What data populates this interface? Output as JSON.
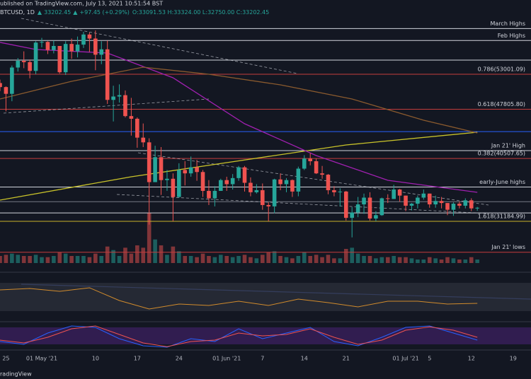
{
  "header": {
    "published": "ublished on TradingView.com, July 13, 2021 10:51:54 BST",
    "symbol": "BTCUSD, 1D",
    "price": "33202.45",
    "change": "+97.45 (+0.29%)",
    "ohlc": "O:33091.53 H:33324.00 L:32750.00 C:33202.45",
    "footer": "radingView"
  },
  "chart_data": {
    "type": "candlestick",
    "up_color": "#26a69a",
    "down_color": "#ef5350",
    "xlim": [
      "2021-04-24",
      "2021-07-22"
    ],
    "ylim": [
      26255,
      61920
    ],
    "grid": true,
    "xticks": [
      {
        "value": "2021-04-25",
        "label": "25"
      },
      {
        "value": "2021-05-01",
        "label": "01 May '21"
      },
      {
        "value": "2021-05-10",
        "label": "10"
      },
      {
        "value": "2021-05-17",
        "label": "17"
      },
      {
        "value": "2021-05-24",
        "label": "24"
      },
      {
        "value": "2021-06-01",
        "label": "01 Jun '21"
      },
      {
        "value": "2021-06-07",
        "label": "7"
      },
      {
        "value": "2021-06-14",
        "label": "14"
      },
      {
        "value": "2021-06-21",
        "label": "21"
      },
      {
        "value": "2021-07-01",
        "label": "01 Jul '21"
      },
      {
        "value": "2021-07-05",
        "label": "5"
      },
      {
        "value": "2021-07-12",
        "label": "12"
      },
      {
        "value": "2021-07-19",
        "label": "19"
      }
    ],
    "x": [
      "2021-04-24",
      "2021-04-25",
      "2021-04-26",
      "2021-04-27",
      "2021-04-28",
      "2021-04-29",
      "2021-04-30",
      "2021-05-01",
      "2021-05-02",
      "2021-05-03",
      "2021-05-04",
      "2021-05-05",
      "2021-05-06",
      "2021-05-07",
      "2021-05-08",
      "2021-05-09",
      "2021-05-10",
      "2021-05-11",
      "2021-05-12",
      "2021-05-13",
      "2021-05-14",
      "2021-05-15",
      "2021-05-16",
      "2021-05-17",
      "2021-05-18",
      "2021-05-19",
      "2021-05-20",
      "2021-05-21",
      "2021-05-22",
      "2021-05-23",
      "2021-05-24",
      "2021-05-25",
      "2021-05-26",
      "2021-05-27",
      "2021-05-28",
      "2021-05-29",
      "2021-05-30",
      "2021-05-31",
      "2021-06-01",
      "2021-06-02",
      "2021-06-03",
      "2021-06-04",
      "2021-06-05",
      "2021-06-06",
      "2021-06-07",
      "2021-06-08",
      "2021-06-09",
      "2021-06-10",
      "2021-06-11",
      "2021-06-12",
      "2021-06-13",
      "2021-06-14",
      "2021-06-15",
      "2021-06-16",
      "2021-06-17",
      "2021-06-18",
      "2021-06-19",
      "2021-06-20",
      "2021-06-21",
      "2021-06-22",
      "2021-06-23",
      "2021-06-24",
      "2021-06-25",
      "2021-06-26",
      "2021-06-27",
      "2021-06-28",
      "2021-06-29",
      "2021-06-30",
      "2021-07-01",
      "2021-07-02",
      "2021-07-03",
      "2021-07-04",
      "2021-07-05",
      "2021-07-06",
      "2021-07-07",
      "2021-07-08",
      "2021-07-09",
      "2021-07-10",
      "2021-07-11",
      "2021-07-12",
      "2021-07-13"
    ],
    "open": [
      51700,
      51100,
      50100,
      54000,
      55000,
      54800,
      53500,
      57700,
      57800,
      56600,
      57200,
      53300,
      57500,
      56400,
      57400,
      58900,
      58300,
      55900,
      56700,
      49200,
      49700,
      49900,
      46800,
      46400,
      43600,
      42900,
      37000,
      40700,
      37300,
      37500,
      34800,
      38800,
      38300,
      39200,
      38500,
      35700,
      34600,
      35700,
      37300,
      36700,
      37600,
      39200,
      36900,
      35500,
      35800,
      33600,
      33400,
      37400,
      36700,
      37300,
      35600,
      39000,
      40500,
      40100,
      38300,
      38100,
      35800,
      35500,
      35600,
      31700,
      32500,
      33700,
      34700,
      31600,
      32100,
      34600,
      34500,
      35900,
      35000,
      33500,
      33800,
      34700,
      35300,
      33700,
      34200,
      33900,
      32900,
      33800,
      33500,
      34300,
      33091.53
    ],
    "high": [
      52200,
      51200,
      54300,
      55400,
      56400,
      55200,
      57900,
      58400,
      57900,
      58000,
      57200,
      57900,
      58300,
      58600,
      59300,
      59200,
      59500,
      57900,
      58000,
      51300,
      51500,
      50600,
      49500,
      46600,
      45700,
      43500,
      42400,
      42200,
      38800,
      38300,
      39800,
      40100,
      40800,
      40300,
      38800,
      37300,
      36400,
      37500,
      37800,
      38200,
      39400,
      39400,
      37700,
      36700,
      36800,
      34000,
      37500,
      38300,
      37600,
      37400,
      39300,
      41000,
      41300,
      40500,
      39400,
      38200,
      36400,
      36100,
      35700,
      33300,
      34800,
      35300,
      35500,
      32700,
      34700,
      35200,
      36600,
      36000,
      35000,
      33900,
      35000,
      35900,
      35300,
      35000,
      34800,
      33900,
      34000,
      34100,
      34600,
      34600,
      33324.0
    ],
    "low": [
      50500,
      47500,
      49000,
      53400,
      53900,
      52400,
      53000,
      57000,
      56000,
      56100,
      53100,
      52900,
      55300,
      55500,
      56900,
      56300,
      53600,
      54500,
      48600,
      46000,
      48800,
      46600,
      43900,
      42100,
      42200,
      30700,
      37000,
      35100,
      35700,
      31200,
      34700,
      36500,
      37800,
      37200,
      34800,
      33600,
      33400,
      35700,
      35700,
      35900,
      37200,
      35600,
      34900,
      35300,
      32900,
      31200,
      32400,
      35800,
      35500,
      34800,
      34900,
      38800,
      39500,
      38200,
      37500,
      35200,
      34900,
      33400,
      31300,
      28800,
      31800,
      32300,
      31300,
      31200,
      32000,
      33900,
      34500,
      34100,
      32700,
      32800,
      33100,
      34400,
      33200,
      33200,
      33100,
      32100,
      32000,
      33100,
      33100,
      32700,
      32750.0
    ],
    "close": [
      51100,
      50100,
      54000,
      55000,
      54800,
      53500,
      57700,
      57800,
      56600,
      57200,
      53300,
      57500,
      56400,
      57400,
      58900,
      58300,
      55900,
      56700,
      49200,
      49700,
      49900,
      46800,
      46400,
      43600,
      42900,
      37000,
      40700,
      37300,
      37500,
      34800,
      38800,
      38300,
      39200,
      38500,
      35700,
      34600,
      35700,
      37300,
      36700,
      37600,
      39200,
      36900,
      35500,
      35800,
      33600,
      33400,
      37400,
      36700,
      37300,
      35600,
      39000,
      40500,
      40100,
      38300,
      38100,
      35800,
      35500,
      35600,
      31700,
      32500,
      33700,
      34700,
      31600,
      32100,
      34600,
      34500,
      35900,
      35000,
      33500,
      33800,
      34700,
      35300,
      33700,
      34200,
      33900,
      32900,
      33800,
      33500,
      34300,
      33105,
      33202.45
    ],
    "volume": [
      12,
      14,
      16,
      14,
      12,
      12,
      14,
      10,
      10,
      12,
      18,
      16,
      12,
      12,
      12,
      10,
      16,
      12,
      28,
      22,
      12,
      26,
      16,
      30,
      26,
      85,
      40,
      30,
      14,
      28,
      20,
      12,
      12,
      10,
      16,
      12,
      10,
      14,
      12,
      10,
      12,
      14,
      10,
      8,
      14,
      18,
      20,
      12,
      10,
      8,
      12,
      18,
      12,
      14,
      10,
      14,
      8,
      8,
      24,
      26,
      16,
      12,
      12,
      8,
      10,
      10,
      12,
      10,
      10,
      8,
      6,
      6,
      10,
      8,
      6,
      10,
      8,
      6,
      6,
      10,
      6
    ],
    "vlim": [
      0,
      90
    ],
    "overlays": [
      {
        "color": "#c9c32a",
        "x": [
          "2021-04-24",
          "2021-05-16",
          "2021-06-01",
          "2021-06-21",
          "2021-07-13"
        ],
        "values": [
          34330,
          37790,
          39890,
          42510,
          44400
        ]
      },
      {
        "color": "#a020b0",
        "x": [
          "2021-04-24",
          "2021-04-30",
          "2021-05-12",
          "2021-05-23",
          "2021-06-04",
          "2021-06-16",
          "2021-06-28",
          "2021-07-13"
        ],
        "values": [
          57730,
          56680,
          56150,
          52480,
          45660,
          40940,
          37270,
          35490
        ]
      },
      {
        "color": "#8a5a2e",
        "x": [
          "2021-04-24",
          "2021-05-06",
          "2021-05-18",
          "2021-05-29",
          "2021-06-10",
          "2021-06-22",
          "2021-07-04",
          "2021-07-13"
        ],
        "values": [
          49330,
          51960,
          54050,
          53000,
          51430,
          49330,
          46190,
          44300
        ]
      }
    ],
    "levels": [
      {
        "price": 59780,
        "color": "#d1d4dc",
        "label": "March Highs"
      },
      {
        "price": 58010,
        "color": "#d1d4dc",
        "label": "Feb Highs"
      },
      {
        "price": 55100,
        "color": "#d1d4dc"
      },
      {
        "price": 53001.09,
        "color": "#c43c3c",
        "label": "0.786(53001.09)"
      },
      {
        "price": 47805.8,
        "color": "#c43c3c",
        "label": "0.618(47805.80)"
      },
      {
        "price": 44490,
        "color": "#2962ff"
      },
      {
        "price": 41680,
        "color": "#d1d4dc",
        "label": "Jan 21' High"
      },
      {
        "price": 40507.65,
        "color": "#c43c3c",
        "label": "0.382(40507.65)"
      },
      {
        "price": 36270,
        "color": "#d1d4dc",
        "label": "early-June highs"
      },
      {
        "price": 34090,
        "color": "#787b86"
      },
      {
        "price": 32430,
        "color": "#d1d4dc"
      },
      {
        "price": 31184.99,
        "color": "#c9b22a",
        "label": "1.618(31184.99)"
      },
      {
        "price": 26600,
        "color": "#c43c3c",
        "label": "Jan 21' lows"
      }
    ],
    "rsi": {
      "color": "#d18b2c",
      "ylim": [
        15,
        85
      ],
      "band": [
        30,
        70
      ],
      "x": [
        "2021-04-24",
        "2021-04-29",
        "2021-05-04",
        "2021-05-09",
        "2021-05-14",
        "2021-05-19",
        "2021-05-24",
        "2021-05-29",
        "2021-06-03",
        "2021-06-08",
        "2021-06-13",
        "2021-06-18",
        "2021-06-23",
        "2021-06-28",
        "2021-07-03",
        "2021-07-08",
        "2021-07-13"
      ],
      "values": [
        60,
        62,
        58,
        63,
        45,
        33,
        40,
        38,
        44,
        38,
        47,
        42,
        36,
        44,
        44,
        40,
        41
      ]
    },
    "stoch": {
      "ylim": [
        0,
        100
      ],
      "band": [
        20,
        80
      ],
      "x": [
        "2021-04-24",
        "2021-04-28",
        "2021-05-02",
        "2021-05-06",
        "2021-05-10",
        "2021-05-14",
        "2021-05-18",
        "2021-05-22",
        "2021-05-26",
        "2021-05-30",
        "2021-06-03",
        "2021-06-07",
        "2021-06-11",
        "2021-06-15",
        "2021-06-19",
        "2021-06-23",
        "2021-06-27",
        "2021-07-01",
        "2021-07-05",
        "2021-07-09",
        "2021-07-13"
      ],
      "series": [
        {
          "color": "#2962ff",
          "values": [
            30,
            20,
            60,
            85,
            80,
            40,
            15,
            10,
            40,
            30,
            75,
            40,
            60,
            80,
            30,
            15,
            45,
            80,
            85,
            60,
            35
          ]
        },
        {
          "color": "#ef5350",
          "values": [
            35,
            25,
            45,
            75,
            85,
            55,
            25,
            12,
            30,
            35,
            60,
            50,
            55,
            75,
            45,
            20,
            35,
            70,
            82,
            70,
            45
          ]
        }
      ]
    }
  }
}
